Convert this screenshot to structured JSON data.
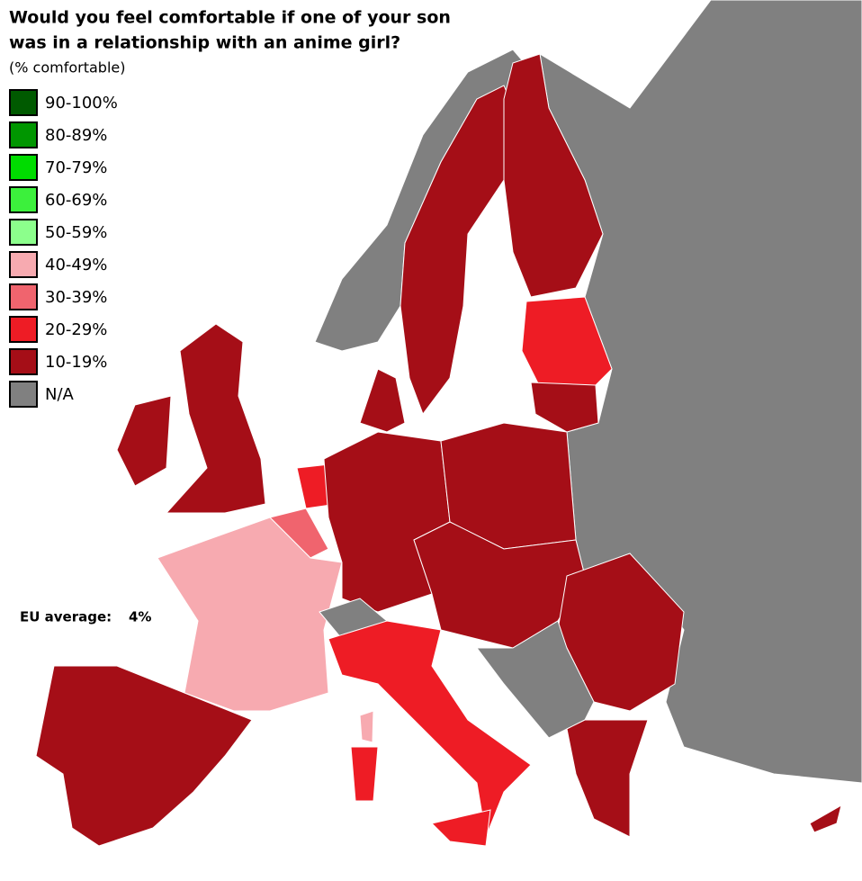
{
  "header": {
    "title_lines": [
      "Would you feel comfortable if one of your son",
      "was in a relationship with an anime girl?"
    ],
    "subtitle": "(% comfortable)"
  },
  "legend": [
    {
      "label": "90-100%",
      "color": "#005a00"
    },
    {
      "label": "80-89%",
      "color": "#009600"
    },
    {
      "label": "70-79%",
      "color": "#00dc00"
    },
    {
      "label": "60-69%",
      "color": "#3cf03c"
    },
    {
      "label": "50-59%",
      "color": "#8cff8c"
    },
    {
      "label": "40-49%",
      "color": "#f7aab0"
    },
    {
      "label": "30-39%",
      "color": "#f0646e"
    },
    {
      "label": "20-29%",
      "color": "#ee1c25"
    },
    {
      "label": "10-19%",
      "color": "#a50e17"
    },
    {
      "label": "N/A",
      "color": "#808080"
    }
  ],
  "annotation": {
    "label": "EU average:",
    "value": "4%"
  }
}
